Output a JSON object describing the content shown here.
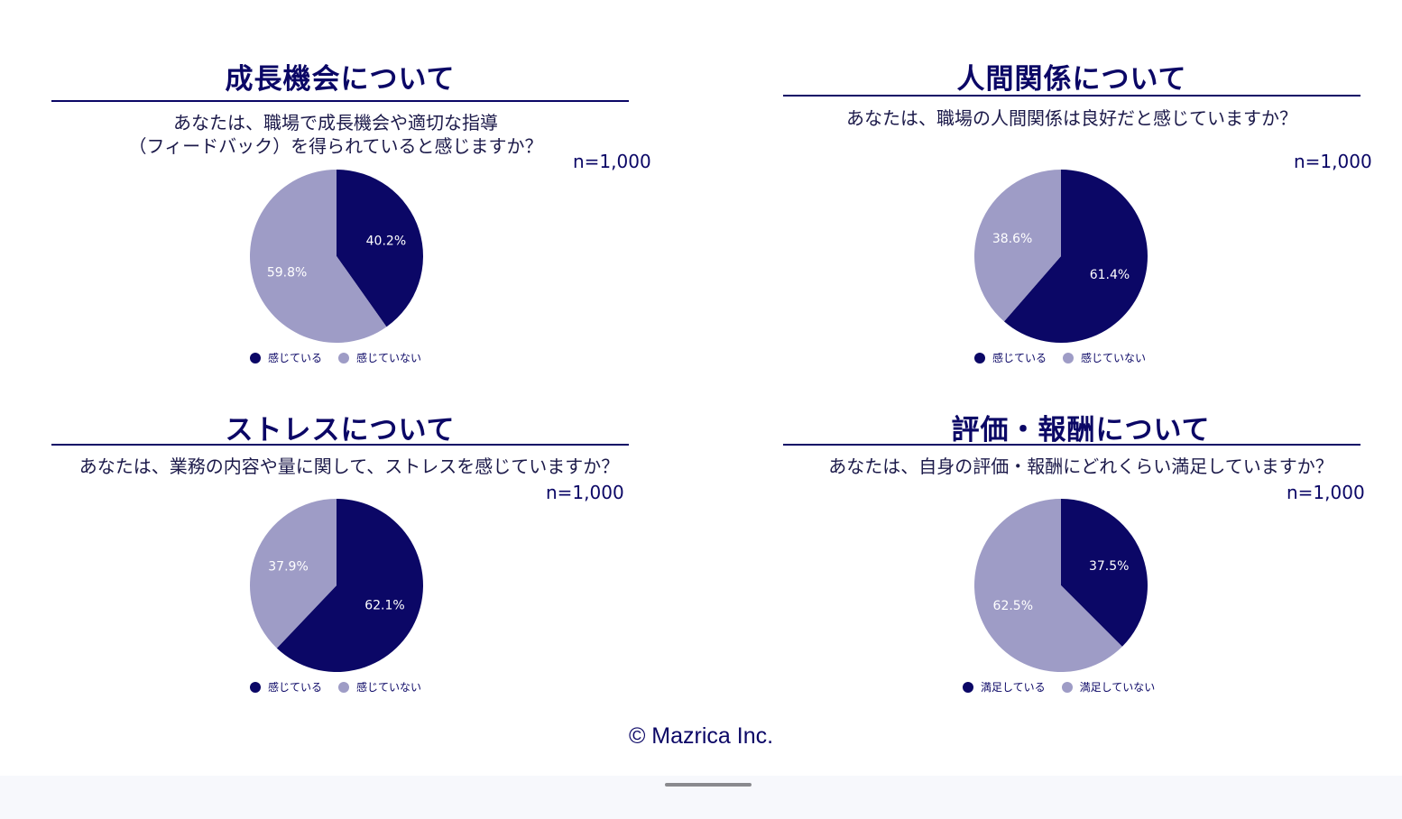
{
  "colors": {
    "primary": "#0b0766",
    "secondary": "#9e9cc6",
    "label": "#ffffff"
  },
  "panels": [
    {
      "title": "成長機会について",
      "question": "あなたは、職場で成長機会や適切な指導\n（フィードバック）を得られていると感じますか？",
      "n": "n=1,000",
      "chart_data": {
        "type": "pie",
        "slices": [
          {
            "label": "感じている",
            "value": 40.2,
            "display": "40.2%",
            "color": "#0b0766"
          },
          {
            "label": "感じていない",
            "value": 59.8,
            "display": "59.8%",
            "color": "#9e9cc6"
          }
        ],
        "legend": "bottom"
      }
    },
    {
      "title": "人間関係について",
      "question": "あなたは、職場の人間関係は良好だと感じていますか？",
      "n": "n=1,000",
      "chart_data": {
        "type": "pie",
        "slices": [
          {
            "label": "感じている",
            "value": 61.4,
            "display": "61.4%",
            "color": "#0b0766"
          },
          {
            "label": "感じていない",
            "value": 38.6,
            "display": "38.6%",
            "color": "#9e9cc6"
          }
        ],
        "legend": "bottom"
      }
    },
    {
      "title": "ストレスについて",
      "question": "あなたは、業務の内容や量に関して、ストレスを感じていますか？",
      "n": "n=1,000",
      "chart_data": {
        "type": "pie",
        "slices": [
          {
            "label": "感じている",
            "value": 62.1,
            "display": "62.1%",
            "color": "#0b0766"
          },
          {
            "label": "感じていない",
            "value": 37.9,
            "display": "37.9%",
            "color": "#9e9cc6"
          }
        ],
        "legend": "bottom"
      }
    },
    {
      "title": "評価・報酬について",
      "question": "あなたは、自身の評価・報酬にどれくらい満足していますか？",
      "n": "n=1,000",
      "chart_data": {
        "type": "pie",
        "slices": [
          {
            "label": "満足している",
            "value": 37.5,
            "display": "37.5%",
            "color": "#0b0766"
          },
          {
            "label": "満足していない",
            "value": 62.5,
            "display": "62.5%",
            "color": "#9e9cc6"
          }
        ],
        "legend": "bottom"
      }
    }
  ],
  "footer": {
    "copyright": "© Mazrica Inc."
  }
}
